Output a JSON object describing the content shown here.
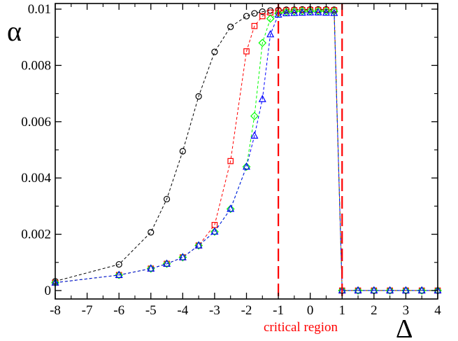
{
  "chart_data": {
    "type": "line",
    "xlabel": "Δ",
    "ylabel": "α",
    "xlim": [
      -8,
      4
    ],
    "ylim": [
      -0.0003,
      0.0102
    ],
    "x_ticks": [
      -8,
      -7,
      -6,
      -5,
      -4,
      -3,
      -2,
      -1,
      0,
      1,
      2,
      3,
      4
    ],
    "x_tick_labels": [
      "-8",
      "-7",
      "-6",
      "-5",
      "-4",
      "-3",
      "-2",
      "-1",
      "0",
      "1",
      "2",
      "3",
      "4"
    ],
    "y_ticks": [
      0,
      0.002,
      0.004,
      0.006,
      0.008,
      0.01
    ],
    "y_tick_labels": [
      "0",
      "0.002",
      "0.004",
      "0.006",
      "0.008",
      "0.01"
    ],
    "grid": false,
    "legend": "none",
    "annotation": {
      "text": "critical region",
      "color": "#ff0000"
    },
    "critical_lines": {
      "x": [
        -1,
        1
      ],
      "color": "#ff0000"
    },
    "series": [
      {
        "marker": "circle",
        "color": "#000000",
        "points": [
          [
            -8,
            0.00033
          ],
          [
            -6,
            0.00093
          ],
          [
            -5,
            0.00207
          ],
          [
            -4.5,
            0.00325
          ],
          [
            -4,
            0.00495
          ],
          [
            -3.5,
            0.0069
          ],
          [
            -3,
            0.00848
          ],
          [
            -2.5,
            0.00937
          ],
          [
            -2,
            0.00975
          ],
          [
            -1.75,
            0.00985
          ],
          [
            -1.5,
            0.00991
          ],
          [
            -1.25,
            0.00995
          ],
          [
            -1,
            0.00997
          ],
          [
            -0.75,
            0.00998
          ],
          [
            -0.5,
            0.00998
          ],
          [
            -0.25,
            0.00999
          ],
          [
            0,
            0.00999
          ],
          [
            0.25,
            0.00999
          ],
          [
            0.5,
            0.00999
          ],
          [
            0.75,
            0.00998
          ],
          [
            1,
            0
          ],
          [
            1.5,
            0
          ],
          [
            2,
            0
          ],
          [
            2.5,
            0
          ],
          [
            3,
            0
          ],
          [
            3.5,
            0
          ],
          [
            4,
            0
          ]
        ]
      },
      {
        "marker": "square",
        "color": "#ff0000",
        "points": [
          [
            -8,
            0.00028
          ],
          [
            -6,
            0.00055
          ],
          [
            -5,
            0.00078
          ],
          [
            -4.5,
            0.00095
          ],
          [
            -4,
            0.00118
          ],
          [
            -3.5,
            0.0016
          ],
          [
            -3,
            0.00233
          ],
          [
            -2.5,
            0.0046
          ],
          [
            -2,
            0.0085
          ],
          [
            -1.75,
            0.0094
          ],
          [
            -1.5,
            0.00975
          ],
          [
            -1.25,
            0.00988
          ],
          [
            -1,
            0.00993
          ],
          [
            -0.75,
            0.00995
          ],
          [
            -0.5,
            0.00996
          ],
          [
            -0.25,
            0.00997
          ],
          [
            0,
            0.00997
          ],
          [
            0.25,
            0.00997
          ],
          [
            0.5,
            0.00997
          ],
          [
            0.75,
            0.00996
          ],
          [
            1,
            0
          ],
          [
            1.5,
            0
          ],
          [
            2,
            0
          ],
          [
            2.5,
            0
          ],
          [
            3,
            0
          ],
          [
            3.5,
            0
          ],
          [
            4,
            0
          ]
        ]
      },
      {
        "marker": "diamond",
        "color": "#00ff00",
        "points": [
          [
            -8,
            0.00028
          ],
          [
            -6,
            0.00055
          ],
          [
            -5,
            0.00078
          ],
          [
            -4.5,
            0.00095
          ],
          [
            -4,
            0.00118
          ],
          [
            -3.5,
            0.0016
          ],
          [
            -3,
            0.00209
          ],
          [
            -2.5,
            0.0029
          ],
          [
            -2,
            0.0044
          ],
          [
            -1.75,
            0.0062
          ],
          [
            -1.5,
            0.0088
          ],
          [
            -1.25,
            0.00966
          ],
          [
            -1,
            0.00985
          ],
          [
            -0.75,
            0.0099
          ],
          [
            -0.5,
            0.00992
          ],
          [
            -0.25,
            0.00993
          ],
          [
            0,
            0.00993
          ],
          [
            0.25,
            0.00993
          ],
          [
            0.5,
            0.00993
          ],
          [
            0.75,
            0.00992
          ],
          [
            1,
            0
          ],
          [
            1.5,
            0
          ],
          [
            2,
            0
          ],
          [
            2.5,
            0
          ],
          [
            3,
            0
          ],
          [
            3.5,
            0
          ],
          [
            4,
            0
          ]
        ]
      },
      {
        "marker": "triangle",
        "color": "#0000ff",
        "points": [
          [
            -8,
            0.00028
          ],
          [
            -6,
            0.00055
          ],
          [
            -5,
            0.00078
          ],
          [
            -4.5,
            0.00095
          ],
          [
            -4,
            0.00118
          ],
          [
            -3.5,
            0.0016
          ],
          [
            -3,
            0.00209
          ],
          [
            -2.5,
            0.0029
          ],
          [
            -2,
            0.0044
          ],
          [
            -1.75,
            0.0055
          ],
          [
            -1.5,
            0.0068
          ],
          [
            -1.25,
            0.0091
          ],
          [
            -1,
            0.0098
          ],
          [
            -0.75,
            0.00985
          ],
          [
            -0.5,
            0.00986
          ],
          [
            -0.25,
            0.00987
          ],
          [
            0,
            0.00988
          ],
          [
            0.25,
            0.00988
          ],
          [
            0.5,
            0.00987
          ],
          [
            0.75,
            0.00986
          ],
          [
            1,
            0
          ],
          [
            1.5,
            0
          ],
          [
            2,
            0
          ],
          [
            2.5,
            0
          ],
          [
            3,
            0
          ],
          [
            3.5,
            0
          ],
          [
            4,
            0
          ]
        ]
      }
    ]
  }
}
